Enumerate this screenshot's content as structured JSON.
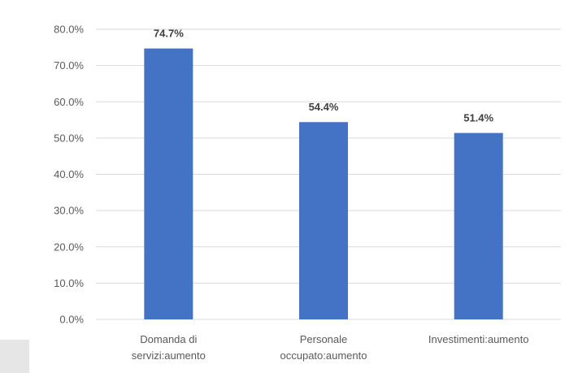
{
  "chart_data": {
    "type": "bar",
    "categories": [
      [
        "Domanda di",
        "servizi:aumento"
      ],
      [
        "Personale",
        "occupato:aumento"
      ],
      [
        "Investimenti:aumento"
      ]
    ],
    "values": [
      74.7,
      54.4,
      51.4
    ],
    "data_labels": [
      "74.7%",
      "54.4%",
      "51.4%"
    ],
    "y_ticks": [
      "0.0%",
      "10.0%",
      "20.0%",
      "30.0%",
      "40.0%",
      "50.0%",
      "60.0%",
      "70.0%",
      "80.0%"
    ],
    "ylim": [
      0,
      80
    ],
    "title": "",
    "xlabel": "",
    "ylabel": "",
    "grid": true,
    "legend": "none",
    "colors": {
      "bar": "#4472c4",
      "grid": "#d9d9d9",
      "text": "#595959",
      "label": "#404040"
    }
  }
}
